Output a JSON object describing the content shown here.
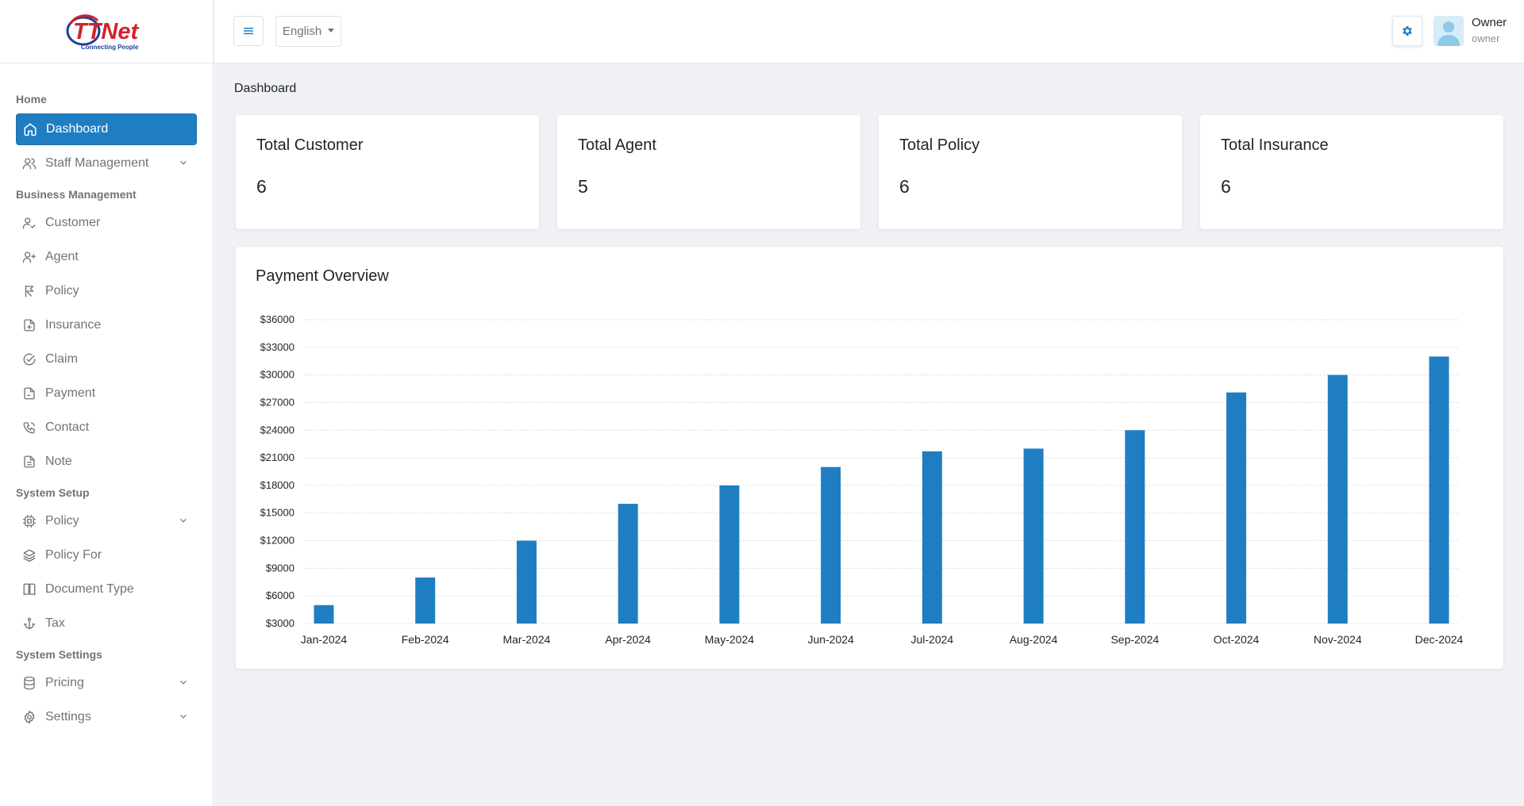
{
  "brand": {
    "logo_text": "TTNet",
    "logo_tagline": "Connecting People",
    "primary_color": "#1f7ec2"
  },
  "sidebar": {
    "sections": [
      {
        "label": "Home"
      },
      {
        "label": "Business Management"
      },
      {
        "label": "System Setup"
      },
      {
        "label": "System Settings"
      }
    ],
    "items": [
      {
        "label": "Dashboard",
        "icon": "home-icon",
        "active": true
      },
      {
        "label": "Staff Management",
        "icon": "users-icon",
        "has_children": true
      },
      {
        "label": "Customer",
        "icon": "user-check-icon"
      },
      {
        "label": "Agent",
        "icon": "user-plus-icon"
      },
      {
        "label": "Policy",
        "icon": "pennant-icon"
      },
      {
        "label": "Insurance",
        "icon": "file-plus-icon"
      },
      {
        "label": "Claim",
        "icon": "circle-check-icon"
      },
      {
        "label": "Payment",
        "icon": "file-icon"
      },
      {
        "label": "Contact",
        "icon": "phone-icon"
      },
      {
        "label": "Note",
        "icon": "file-text-icon"
      },
      {
        "label": "Policy",
        "icon": "cpu-icon",
        "has_children": true
      },
      {
        "label": "Policy For",
        "icon": "layers-icon"
      },
      {
        "label": "Document Type",
        "icon": "book-icon"
      },
      {
        "label": "Tax",
        "icon": "anchor-icon"
      },
      {
        "label": "Pricing",
        "icon": "database-icon",
        "has_children": true
      },
      {
        "label": "Settings",
        "icon": "gear-icon",
        "has_children": true
      }
    ]
  },
  "header": {
    "language": "English",
    "user_name": "Owner",
    "user_role": "owner"
  },
  "main": {
    "breadcrumb": "Dashboard",
    "stats": [
      {
        "title": "Total Customer",
        "value": "6"
      },
      {
        "title": "Total Agent",
        "value": "5"
      },
      {
        "title": "Total Policy",
        "value": "6"
      },
      {
        "title": "Total Insurance",
        "value": "6"
      }
    ],
    "chart_title": "Payment Overview"
  },
  "chart_data": {
    "type": "bar",
    "title": "Payment Overview",
    "categories": [
      "Jan-2024",
      "Feb-2024",
      "Mar-2024",
      "Apr-2024",
      "May-2024",
      "Jun-2024",
      "Jul-2024",
      "Aug-2024",
      "Sep-2024",
      "Oct-2024",
      "Nov-2024",
      "Dec-2024"
    ],
    "values": [
      5000,
      8000,
      12000,
      16000,
      18000,
      20000,
      21700,
      22000,
      24000,
      28100,
      30000,
      32000
    ],
    "ylim": [
      3000,
      36000
    ],
    "y_ticks": [
      "$3000",
      "$6000",
      "$9000",
      "$12000",
      "$15000",
      "$18000",
      "$21000",
      "$24000",
      "$27000",
      "$30000",
      "$33000",
      "$36000"
    ],
    "y_tick_values": [
      3000,
      6000,
      9000,
      12000,
      15000,
      18000,
      21000,
      24000,
      27000,
      30000,
      33000,
      36000
    ],
    "grid": true,
    "bar_color": "#1f7ec2"
  }
}
